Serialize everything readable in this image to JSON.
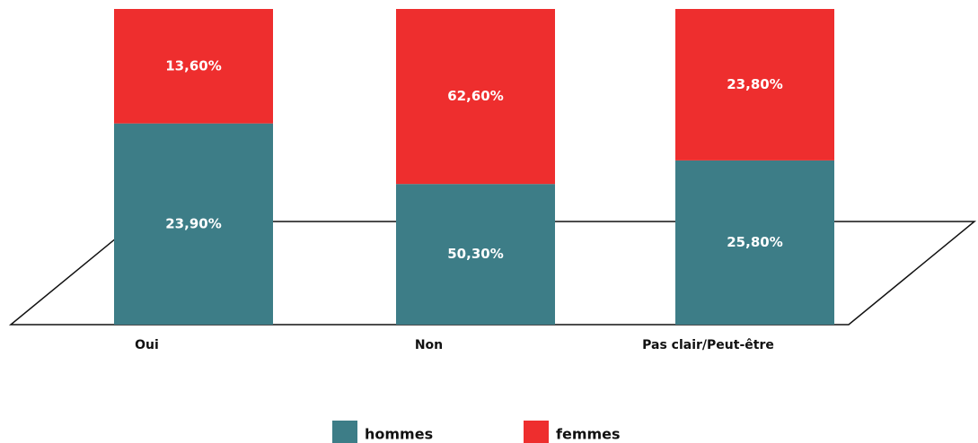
{
  "chart_data": {
    "type": "bar",
    "stack": "percent",
    "categories": [
      "Oui",
      "Non",
      "Pas clair/Peut-être"
    ],
    "series": [
      {
        "name": "hommes",
        "color": "#3d7d87",
        "values": [
          23.9,
          50.3,
          25.8
        ],
        "value_labels": [
          "23,90%",
          "50,30%",
          "25,80%"
        ]
      },
      {
        "name": "femmes",
        "color": "#ee2e2e",
        "values": [
          13.6,
          62.6,
          23.8
        ],
        "value_labels": [
          "13,60%",
          "62,60%",
          "23,80%"
        ]
      }
    ]
  }
}
